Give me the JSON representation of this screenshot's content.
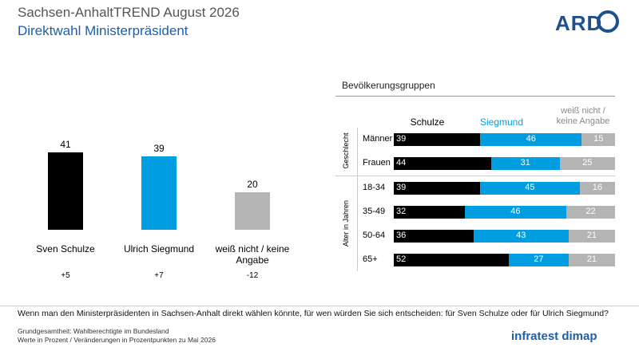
{
  "header": {
    "title": "Sachsen-AnhaltTREND August 2026",
    "subtitle": "Direktwahl Ministerpräsident",
    "logo": "ARD"
  },
  "chart_data": [
    {
      "type": "bar",
      "categories": [
        "Sven Schulze",
        "Ulrich Siegmund",
        "weiß nicht / keine Angabe"
      ],
      "values": [
        41,
        39,
        20
      ],
      "colors": [
        "#000000",
        "#009de0",
        "#b4b4b4"
      ],
      "changes": [
        5,
        7,
        -12
      ],
      "change_labels": [
        "+5",
        "+7",
        "-12"
      ]
    },
    {
      "type": "stacked-bar",
      "title": "Bevölkerungsgruppen",
      "groups": [
        {
          "name": "Geschlecht",
          "categories": [
            "Männer",
            "Frauen"
          ]
        },
        {
          "name": "Alter in Jahren",
          "categories": [
            "18-34",
            "35-49",
            "50-64",
            "65+"
          ]
        }
      ],
      "series": [
        {
          "name": "Schulze",
          "color": "#000000",
          "values": [
            39,
            44,
            39,
            32,
            36,
            52
          ]
        },
        {
          "name": "Siegmund",
          "color": "#009de0",
          "values": [
            46,
            31,
            45,
            46,
            43,
            27
          ]
        },
        {
          "name": "weiß nicht / keine Angabe",
          "color": "#b4b4b4",
          "values": [
            15,
            25,
            16,
            22,
            21,
            21
          ]
        }
      ]
    }
  ],
  "question": "Wenn man den Ministerpräsidenten in Sachsen-Anhalt direkt wählen könnte, für wen würden Sie sich entscheiden: für Sven Schulze oder für Ulrich Siegmund?",
  "notes": [
    "Grundgesamtheit: Wahlberechtigte im Bundesland",
    "Werte in Prozent / Veränderungen in Prozentpunkten zu Mai 2026"
  ],
  "source_logo": "infratest dimap"
}
